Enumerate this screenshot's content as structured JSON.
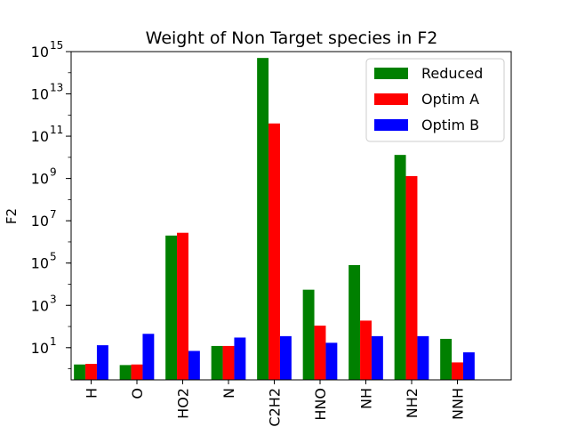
{
  "chart_data": {
    "type": "bar",
    "title": "Weight of Non Target species in F2",
    "xlabel": "",
    "ylabel": "F2",
    "yscale": "log",
    "ylim": [
      0.3,
      1000000000000000.0
    ],
    "grid": false,
    "legend_position": "top-right",
    "categories": [
      "H",
      "O",
      "HO2",
      "N",
      "C2H2",
      "HNO",
      "NH",
      "NH2",
      "NNH"
    ],
    "yticks": [
      {
        "value": 10,
        "base": "10",
        "exp": "1"
      },
      {
        "value": 1000,
        "base": "10",
        "exp": "3"
      },
      {
        "value": 100000,
        "base": "10",
        "exp": "5"
      },
      {
        "value": 10000000,
        "base": "10",
        "exp": "7"
      },
      {
        "value": 1000000000,
        "base": "10",
        "exp": "9"
      },
      {
        "value": 100000000000,
        "base": "10",
        "exp": "11"
      },
      {
        "value": 10000000000000,
        "base": "10",
        "exp": "13"
      },
      {
        "value": 1000000000000000,
        "base": "10",
        "exp": "15"
      }
    ],
    "series": [
      {
        "name": "Reduced",
        "color": "#008000",
        "values": [
          1.6,
          1.5,
          2000000.0,
          12,
          500000000000000.0,
          5500.0,
          80000.0,
          13000000000.0,
          26
        ]
      },
      {
        "name": "Optim A",
        "color": "#ff0000",
        "values": [
          1.7,
          1.6,
          2700000.0,
          12,
          400000000000.0,
          110,
          190,
          1300000000.0,
          2.0
        ]
      },
      {
        "name": "Optim B",
        "color": "#0000ff",
        "values": [
          13,
          45,
          7.0,
          30,
          35,
          17,
          35,
          35,
          6.0
        ]
      }
    ]
  }
}
